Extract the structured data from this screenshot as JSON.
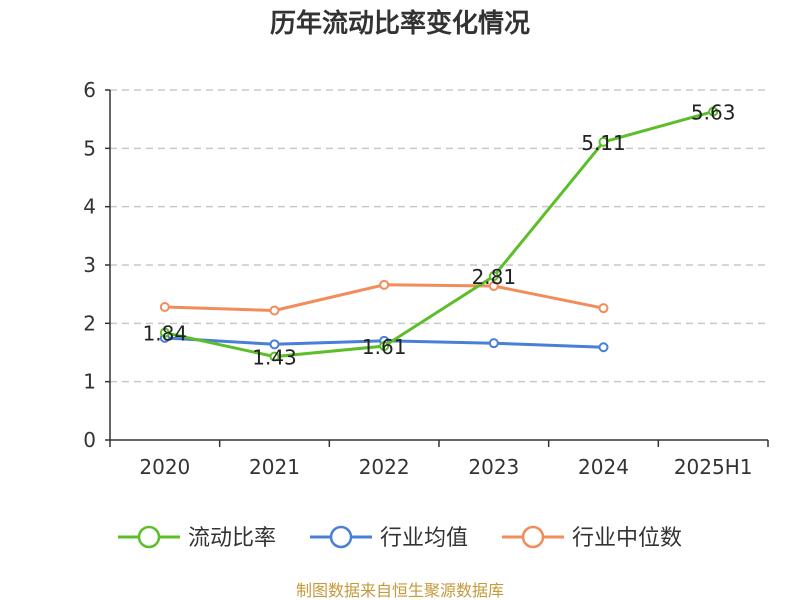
{
  "chart_data": {
    "type": "line",
    "title": "历年流动比率变化情况",
    "categories": [
      "2020",
      "2021",
      "2022",
      "2023",
      "2024",
      "2025H1"
    ],
    "ylim": [
      0,
      6
    ],
    "yticks": [
      0,
      1,
      2,
      3,
      4,
      5,
      6
    ],
    "grid": true,
    "legend_placement": "bottom",
    "series": [
      {
        "name": "流动比率",
        "color": "#5cbf2a",
        "values": [
          1.84,
          1.43,
          1.61,
          2.81,
          5.11,
          5.63
        ],
        "labels": [
          "1.84",
          "1.43",
          "1.61",
          "2.81",
          "5.11",
          "5.63"
        ]
      },
      {
        "name": "行业均值",
        "color": "#4a7fd8",
        "values": [
          1.75,
          1.64,
          1.7,
          1.66,
          1.59,
          null
        ]
      },
      {
        "name": "行业中位数",
        "color": "#f28c5a",
        "values": [
          2.28,
          2.22,
          2.66,
          2.64,
          2.26,
          null
        ]
      }
    ],
    "source": "制图数据来自恒生聚源数据库"
  }
}
